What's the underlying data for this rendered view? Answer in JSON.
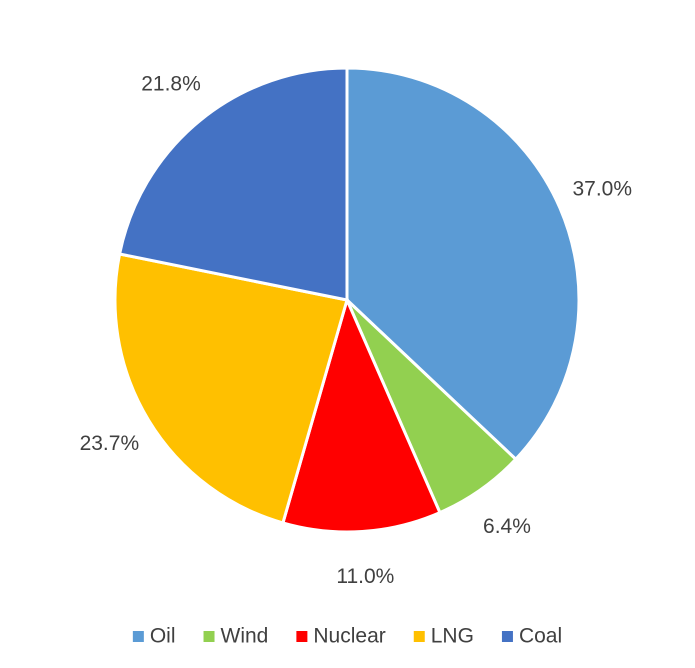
{
  "chart_data": {
    "type": "pie",
    "categories": [
      "Oil",
      "Wind",
      "Nuclear",
      "LNG",
      "Coal"
    ],
    "values": [
      37.0,
      6.4,
      11.0,
      23.7,
      21.8
    ],
    "value_labels": [
      "37.0%",
      "6.4%",
      "11.0%",
      "23.7%",
      "21.8%"
    ],
    "colors": [
      "#5b9bd5",
      "#92d050",
      "#ff0000",
      "#ffc000",
      "#4472c4"
    ],
    "legend": "bottom"
  }
}
